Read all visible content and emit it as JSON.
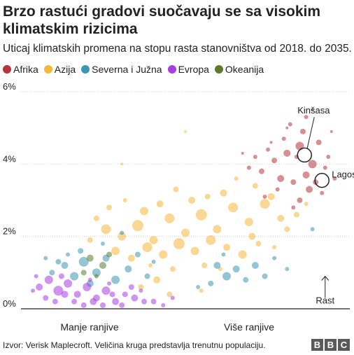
{
  "header": {
    "title": "Brzo rastući gradovi suočavaju se sa visokim klimatskim rizicima",
    "subtitle": "Uticaj klimatskih promena na stopu rasta stanovništva od 2018. do 2035."
  },
  "footer": {
    "source": "Izvor: Verisk Maplecroft. Veličina kruga predstavlja trenutnu populaciju.",
    "logo_letters": [
      "B",
      "B",
      "C"
    ]
  },
  "chart_data": {
    "type": "scatter",
    "title": "Brzo rastući gradovi suočavaju se sa visokim klimatskim rizicima",
    "subtitle": "Uticaj klimatskih promena na stopu rasta stanovništva od 2018. do 2035.",
    "xlabel_left": "Manje ranjive",
    "xlabel_right": "Više ranjive",
    "ylim": [
      0,
      6
    ],
    "y_ticks": [
      "0%",
      "2%",
      "4%",
      "6%"
    ],
    "grid": true,
    "legend_position": "top-left",
    "series": [
      {
        "name": "Afrika",
        "color": "#b5343a",
        "points": [
          [
            0.82,
            4.3,
            5
          ],
          [
            0.86,
            4.5,
            6
          ],
          [
            0.88,
            3.7,
            5
          ],
          [
            0.9,
            4.0,
            6
          ],
          [
            0.84,
            3.5,
            4
          ],
          [
            0.78,
            4.1,
            4
          ],
          [
            0.92,
            4.6,
            4
          ],
          [
            0.94,
            3.9,
            3
          ],
          [
            0.8,
            3.6,
            5
          ],
          [
            0.76,
            4.4,
            3
          ],
          [
            0.87,
            4.9,
            4
          ],
          [
            0.83,
            5.1,
            3
          ],
          [
            0.89,
            3.3,
            5
          ],
          [
            0.91,
            3.5,
            4
          ],
          [
            0.85,
            4.2,
            3
          ],
          [
            0.74,
            3.8,
            4
          ],
          [
            0.72,
            4.2,
            3
          ],
          [
            0.95,
            4.2,
            3
          ],
          [
            0.93,
            3.2,
            3
          ],
          [
            0.81,
            4.7,
            3
          ],
          [
            0.79,
            3.3,
            3
          ],
          [
            0.86,
            3.0,
            4
          ],
          [
            0.97,
            3.6,
            3
          ],
          [
            0.77,
            4.6,
            2
          ],
          [
            0.88,
            5.3,
            3
          ],
          [
            0.9,
            5.5,
            2
          ],
          [
            0.7,
            3.9,
            3
          ],
          [
            0.68,
            4.3,
            2
          ],
          [
            0.84,
            2.8,
            3
          ],
          [
            0.96,
            4.9,
            2
          ],
          [
            0.75,
            3.1,
            3
          ],
          [
            0.82,
            5.0,
            2
          ]
        ]
      },
      {
        "name": "Azija",
        "color": "#f6b83c",
        "points": [
          [
            0.25,
            2.2,
            7
          ],
          [
            0.3,
            2.0,
            6
          ],
          [
            0.35,
            2.3,
            8
          ],
          [
            0.4,
            1.9,
            6
          ],
          [
            0.45,
            2.5,
            7
          ],
          [
            0.5,
            2.1,
            6
          ],
          [
            0.55,
            2.6,
            8
          ],
          [
            0.6,
            2.2,
            6
          ],
          [
            0.65,
            2.8,
            7
          ],
          [
            0.7,
            2.4,
            6
          ],
          [
            0.75,
            2.9,
            7
          ],
          [
            0.8,
            2.5,
            5
          ],
          [
            0.28,
            1.6,
            6
          ],
          [
            0.33,
            1.4,
            5
          ],
          [
            0.38,
            1.7,
            7
          ],
          [
            0.43,
            1.5,
            6
          ],
          [
            0.48,
            1.8,
            8
          ],
          [
            0.53,
            1.6,
            6
          ],
          [
            0.58,
            1.9,
            7
          ],
          [
            0.63,
            1.7,
            5
          ],
          [
            0.68,
            1.5,
            6
          ],
          [
            0.42,
            2.9,
            5
          ],
          [
            0.37,
            2.7,
            6
          ],
          [
            0.52,
            3.0,
            5
          ],
          [
            0.57,
            3.1,
            4
          ],
          [
            0.62,
            3.2,
            5
          ],
          [
            0.72,
            3.4,
            4
          ],
          [
            0.77,
            3.1,
            5
          ],
          [
            0.22,
            2.5,
            4
          ],
          [
            0.2,
            1.9,
            4
          ],
          [
            0.47,
            3.3,
            4
          ],
          [
            0.31,
            3.0,
            3
          ],
          [
            0.26,
            2.8,
            4
          ],
          [
            0.66,
            3.6,
            3
          ],
          [
            0.71,
            2.0,
            5
          ],
          [
            0.82,
            2.2,
            4
          ],
          [
            0.85,
            2.6,
            4
          ],
          [
            0.56,
            1.2,
            4
          ],
          [
            0.61,
            1.1,
            3
          ],
          [
            0.46,
            1.1,
            4
          ],
          [
            0.39,
            1.2,
            3
          ],
          [
            0.73,
            1.8,
            4
          ],
          [
            0.78,
            1.7,
            3
          ],
          [
            0.88,
            2.9,
            3
          ],
          [
            0.5,
            4.9,
            2
          ],
          [
            0.3,
            4.0,
            2
          ],
          [
            0.36,
            0.6,
            4
          ],
          [
            0.45,
            0.4,
            4
          ],
          [
            0.55,
            0.5,
            3
          ],
          [
            0.41,
            0.8,
            5
          ]
        ]
      },
      {
        "name": "Severna i Južna",
        "color": "#3a96b3",
        "points": [
          [
            0.12,
            1.2,
            5
          ],
          [
            0.15,
            0.9,
            6
          ],
          [
            0.18,
            1.3,
            7
          ],
          [
            0.22,
            1.0,
            6
          ],
          [
            0.25,
            1.4,
            5
          ],
          [
            0.28,
            0.8,
            6
          ],
          [
            0.32,
            1.1,
            5
          ],
          [
            0.08,
            1.0,
            4
          ],
          [
            0.1,
            1.3,
            4
          ],
          [
            0.2,
            0.7,
            5
          ],
          [
            0.35,
            1.5,
            4
          ],
          [
            0.38,
            0.9,
            4
          ],
          [
            0.6,
            1.2,
            5
          ],
          [
            0.63,
            0.9,
            6
          ],
          [
            0.66,
            1.1,
            5
          ],
          [
            0.69,
            0.8,
            4
          ],
          [
            0.72,
            1.2,
            5
          ],
          [
            0.58,
            0.7,
            4
          ],
          [
            0.75,
            0.9,
            4
          ],
          [
            0.17,
            1.6,
            4
          ],
          [
            0.24,
            1.8,
            3
          ],
          [
            0.3,
            2.1,
            3
          ],
          [
            0.13,
            1.5,
            3
          ],
          [
            0.9,
            2.2,
            3
          ],
          [
            0.06,
            1.4,
            3
          ],
          [
            0.4,
            1.3,
            3
          ],
          [
            0.62,
            1.5,
            3
          ],
          [
            0.54,
            0.6,
            3
          ],
          [
            0.78,
            1.4,
            3
          ],
          [
            0.82,
            1.1,
            3
          ]
        ]
      },
      {
        "name": "Evropa",
        "color": "#a73ee0",
        "points": [
          [
            0.04,
            0.6,
            5
          ],
          [
            0.07,
            0.8,
            6
          ],
          [
            0.1,
            0.5,
            7
          ],
          [
            0.13,
            0.7,
            6
          ],
          [
            0.16,
            0.4,
            5
          ],
          [
            0.19,
            0.6,
            6
          ],
          [
            0.22,
            0.3,
            5
          ],
          [
            0.25,
            0.5,
            6
          ],
          [
            0.28,
            0.2,
            5
          ],
          [
            0.31,
            0.4,
            4
          ],
          [
            0.34,
            0.3,
            5
          ],
          [
            0.37,
            0.2,
            4
          ],
          [
            0.06,
            0.3,
            4
          ],
          [
            0.09,
            0.2,
            4
          ],
          [
            0.12,
            0.4,
            5
          ],
          [
            0.15,
            0.2,
            4
          ],
          [
            0.18,
            0.1,
            4
          ],
          [
            0.21,
            0.2,
            5
          ],
          [
            0.24,
            0.1,
            4
          ],
          [
            0.27,
            0.4,
            4
          ],
          [
            0.3,
            0.1,
            4
          ],
          [
            0.33,
            0.6,
            4
          ],
          [
            0.36,
            0.5,
            3
          ],
          [
            0.4,
            0.2,
            4
          ],
          [
            0.43,
            0.1,
            3
          ],
          [
            0.46,
            0.3,
            3
          ],
          [
            0.02,
            0.5,
            3
          ],
          [
            0.11,
            0.9,
            4
          ],
          [
            0.2,
            0.8,
            3
          ],
          [
            0.26,
            0.7,
            3
          ],
          [
            0.03,
            0.9,
            3
          ]
        ]
      },
      {
        "name": "Okeanija",
        "color": "#5a7a2c",
        "points": [
          [
            0.2,
            1.4,
            5
          ],
          [
            0.24,
            1.2,
            5
          ],
          [
            0.18,
            1.0,
            4
          ],
          [
            0.26,
            1.5,
            4
          ],
          [
            0.22,
            0.9,
            3
          ]
        ]
      }
    ],
    "annotations": [
      {
        "label": "Kinšasa",
        "x": 0.875,
        "y": 4.25
      },
      {
        "label": "Lagos",
        "x": 0.93,
        "y": 3.55
      },
      {
        "label": "Rast",
        "x": 0.94,
        "y": 0.45
      }
    ]
  }
}
